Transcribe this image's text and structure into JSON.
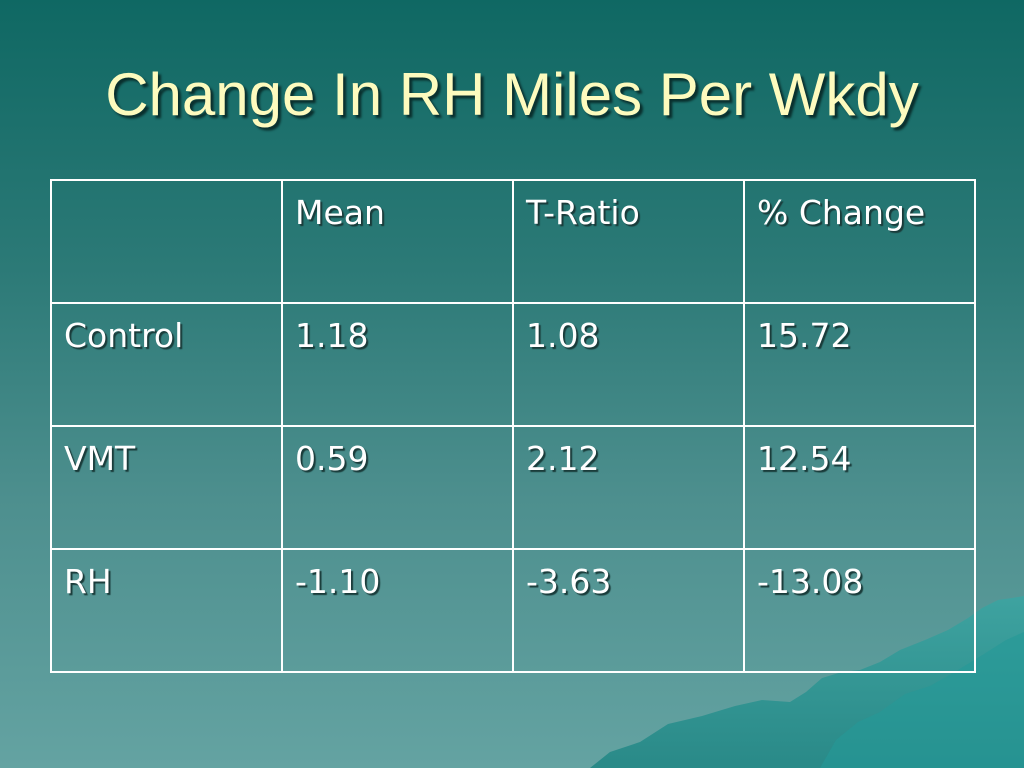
{
  "title": "Change In RH Miles Per Wkdy",
  "table": {
    "headers": [
      "",
      "Mean",
      "T-Ratio",
      "% Change"
    ],
    "rows": [
      [
        "Control",
        "1.18",
        "1.08",
        "15.72"
      ],
      [
        "VMT",
        "0.59",
        "2.12",
        "12.54"
      ],
      [
        "RH",
        "-1.10",
        "-3.63",
        "-13.08"
      ]
    ]
  },
  "colors": {
    "title": "#fdfbbe",
    "background_top": "#0f6863",
    "background_bottom": "#64a3a2",
    "text": "#ffffff",
    "border": "#ffffff"
  }
}
